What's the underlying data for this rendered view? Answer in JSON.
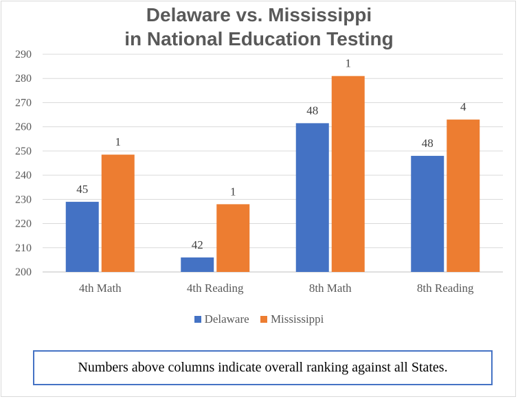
{
  "chart_data": {
    "type": "bar",
    "title_lines": [
      "Delaware vs. Mississippi",
      "in National Education Testing"
    ],
    "categories": [
      "4th Math",
      "4th Reading",
      "8th Math",
      "8th Reading"
    ],
    "ylim": [
      200,
      290
    ],
    "yticks": [
      200,
      210,
      220,
      230,
      240,
      250,
      260,
      270,
      280,
      290
    ],
    "grid": true,
    "legend_position": "bottom",
    "series": [
      {
        "name": "Delaware",
        "color": "#4472c4",
        "values": [
          229,
          206,
          261.5,
          248
        ],
        "labels": [
          "45",
          "42",
          "48",
          "48"
        ]
      },
      {
        "name": "Mississippi",
        "color": "#ed7d31",
        "values": [
          248.5,
          228,
          281,
          263
        ],
        "labels": [
          "1",
          "1",
          "1",
          "4"
        ]
      }
    ],
    "note": "Numbers above columns indicate overall ranking against all States."
  }
}
